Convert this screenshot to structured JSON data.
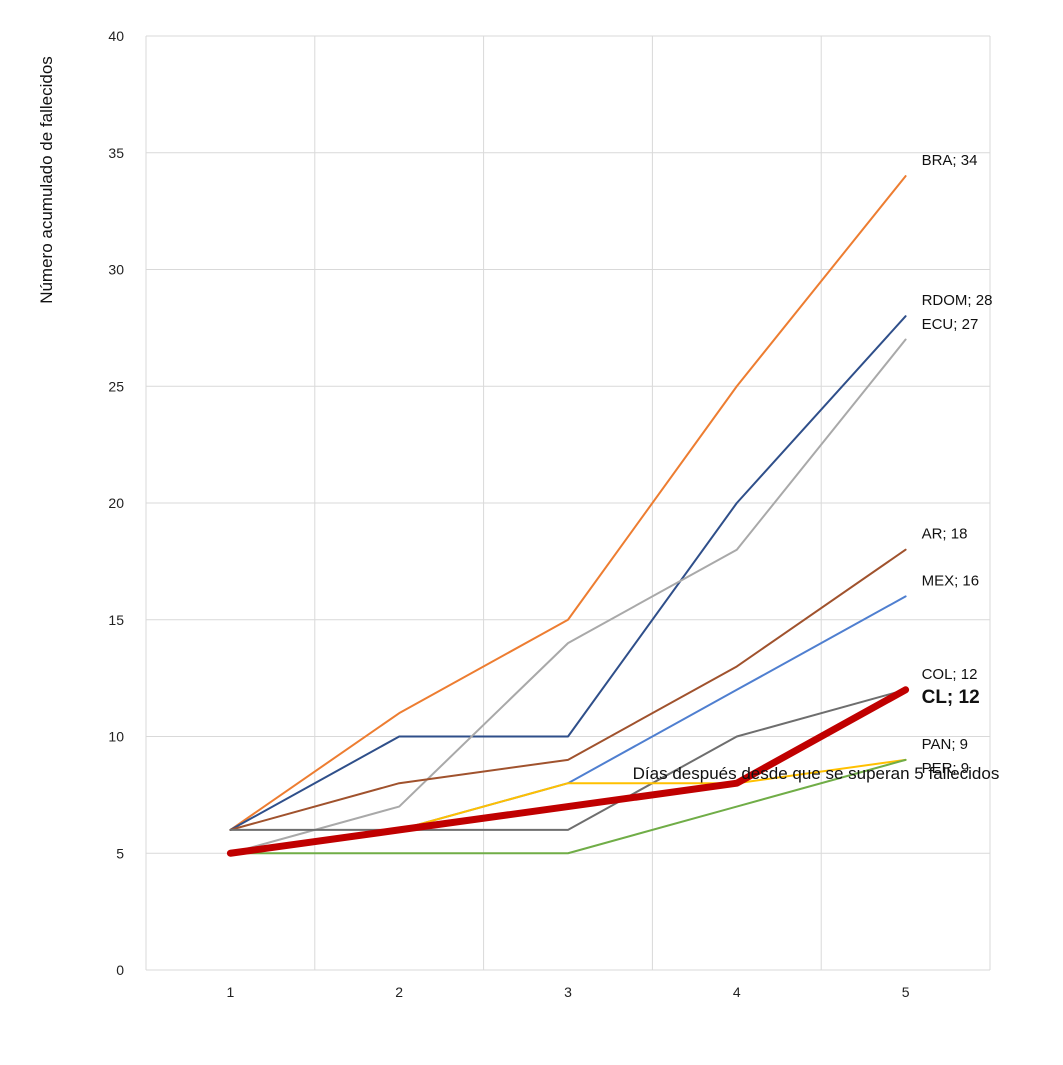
{
  "chart_data": {
    "type": "line",
    "title": "",
    "xlabel": "Días después desde que se superan 5 fallecidos",
    "ylabel": "Número acumulado de fallecidos",
    "x": [
      1,
      2,
      3,
      4,
      5
    ],
    "xlim": [
      0.5,
      5.5
    ],
    "ylim": [
      0,
      40
    ],
    "yticks": [
      0,
      5,
      10,
      15,
      20,
      25,
      30,
      35,
      40
    ],
    "grid": "vertical-and-horizontal",
    "legend": "none; series labelled at line ends",
    "series": [
      {
        "name": "BRA",
        "label": "BRA; 34",
        "color": "#ED7D31",
        "values": [
          6,
          11,
          15,
          25,
          34
        ]
      },
      {
        "name": "RDOM",
        "label": "RDOM; 28",
        "color": "#2F4F8A",
        "values": [
          6,
          10,
          10,
          20,
          28
        ]
      },
      {
        "name": "ECU",
        "label": "ECU; 27",
        "color": "#A9A9A9",
        "values": [
          5,
          7,
          14,
          18,
          27
        ]
      },
      {
        "name": "AR",
        "label": "AR; 18",
        "color": "#A0522D",
        "values": [
          6,
          8,
          9,
          13,
          18
        ]
      },
      {
        "name": "MEX",
        "label": "MEX; 16",
        "color": "#4F7FD0",
        "values": [
          5,
          6,
          8,
          12,
          16
        ]
      },
      {
        "name": "COL",
        "label": "COL; 12",
        "color": "#6E6E6E",
        "values": [
          6,
          6,
          6,
          10,
          12
        ]
      },
      {
        "name": "PAN",
        "label": "PAN; 9",
        "color": "#FFC000",
        "values": [
          5,
          6,
          8,
          8,
          9
        ]
      },
      {
        "name": "PER",
        "label": "PER; 9",
        "color": "#70AD47",
        "values": [
          5,
          5,
          5,
          7,
          9
        ]
      },
      {
        "name": "CL",
        "label": "CL; 12",
        "color": "#C00000",
        "emphasis": true,
        "values": [
          5,
          6,
          7,
          8,
          12
        ]
      }
    ]
  }
}
